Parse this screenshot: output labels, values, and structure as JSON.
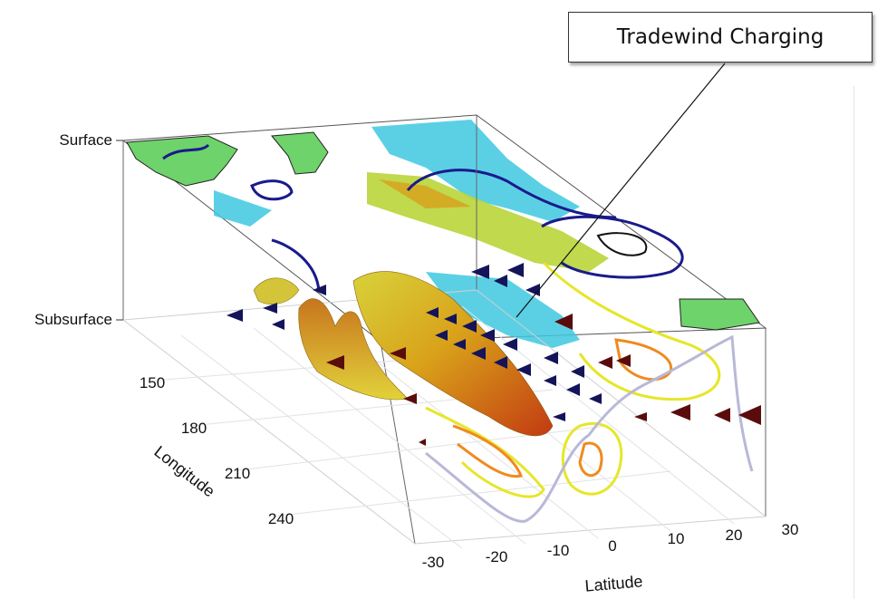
{
  "callout": {
    "label": "Tradewind Charging"
  },
  "chart_data": {
    "type": "3d-box",
    "title": "",
    "levels": [
      "Surface",
      "Subsurface"
    ],
    "longitude": {
      "label": "Longitude",
      "ticks": [
        "150",
        "180",
        "210",
        "240"
      ]
    },
    "latitude": {
      "label": "Latitude",
      "ticks": [
        "-30",
        "-20",
        "-10",
        "0",
        "10",
        "20",
        "30"
      ]
    },
    "grid": true,
    "colors": {
      "land": "#6dd36a",
      "ocean_patch": "#3ec8e0",
      "contour_dark": "#1a1a8c",
      "contour_yellow": "#e6e62a",
      "contour_orange": "#f08a1e",
      "isosurface": "#d9a21a",
      "arrow_dark": "#14145a",
      "arrow_red": "#5a0c0c",
      "trace": "#b8b8d8"
    }
  }
}
